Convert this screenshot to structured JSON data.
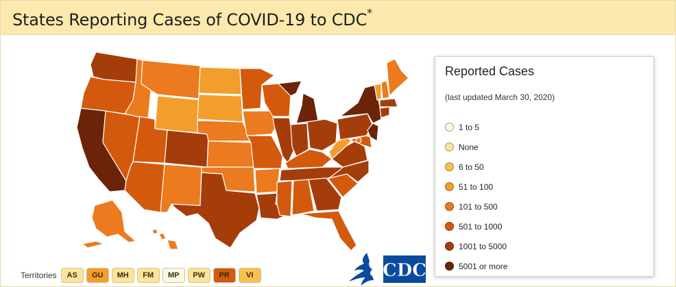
{
  "header": {
    "title": "States Reporting Cases of COVID-19 to CDC",
    "title_mark": "*"
  },
  "legend": {
    "title": "Reported Cases",
    "updated": "(last updated March 30, 2020)",
    "items": [
      {
        "label": "1 to 5",
        "color": "#fbf9e4"
      },
      {
        "label": "None",
        "color": "#fde39a"
      },
      {
        "label": "6 to 50",
        "color": "#f9c04c"
      },
      {
        "label": "51 to 100",
        "color": "#f39d2c"
      },
      {
        "label": "101 to 500",
        "color": "#ec7a1e"
      },
      {
        "label": "501 to 1000",
        "color": "#d35a0c"
      },
      {
        "label": "1001 to 5000",
        "color": "#a53d0b"
      },
      {
        "label": "5001 or more",
        "color": "#6b240a"
      }
    ]
  },
  "territories": {
    "label": "Territories",
    "items": [
      {
        "code": "AS",
        "color": "#fde39a"
      },
      {
        "code": "GU",
        "color": "#f39d2c"
      },
      {
        "code": "MH",
        "color": "#fde39a"
      },
      {
        "code": "FM",
        "color": "#fde39a"
      },
      {
        "code": "MP",
        "color": "#fbf9e4"
      },
      {
        "code": "PW",
        "color": "#fde39a"
      },
      {
        "code": "PR",
        "color": "#d35a0c"
      },
      {
        "code": "VI",
        "color": "#f9c04c"
      }
    ]
  },
  "colors": {
    "header_bg": "#fde9ad",
    "cdc_blue": "#0a4b9e"
  },
  "logos": {
    "hhs": "hhs-eagle-logo",
    "cdc": "CDC"
  }
}
